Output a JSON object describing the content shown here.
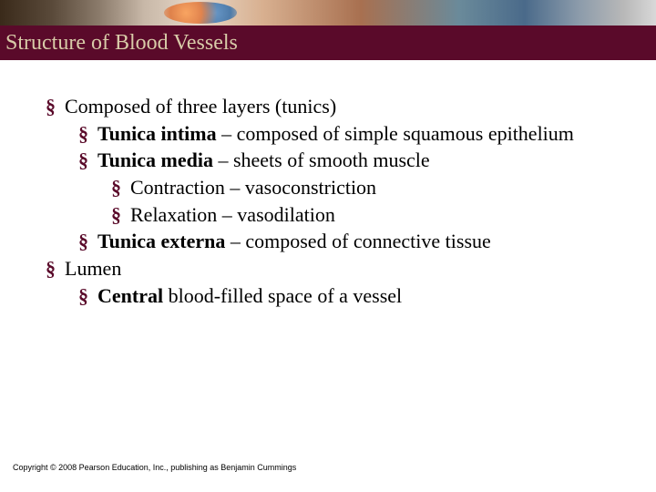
{
  "colors": {
    "title_bar_bg": "#5a0a2a",
    "title_text": "#d8cba8",
    "bullet": "#5a0a2a",
    "body_text": "#000000",
    "copyright": "#000000"
  },
  "title": "Structure of Blood Vessels",
  "bullets": {
    "l1a": "Composed of three layers (tunics)",
    "l2a_bold": "Tunica intima",
    "l2a_rest": " – composed of simple squamous epithelium",
    "l2b_bold": "Tunica media",
    "l2b_rest": " – sheets of smooth muscle",
    "l3a": "Contraction – vasoconstriction",
    "l3b": "Relaxation – vasodilation",
    "l2c_bold": "Tunica externa",
    "l2c_rest": " – composed of connective tissue",
    "l1b": "Lumen",
    "l2d_bold": "Central",
    "l2d_rest": " blood-filled space of a vessel"
  },
  "copyright": "Copyright © 2008 Pearson Education, Inc., publishing as Benjamin Cummings"
}
